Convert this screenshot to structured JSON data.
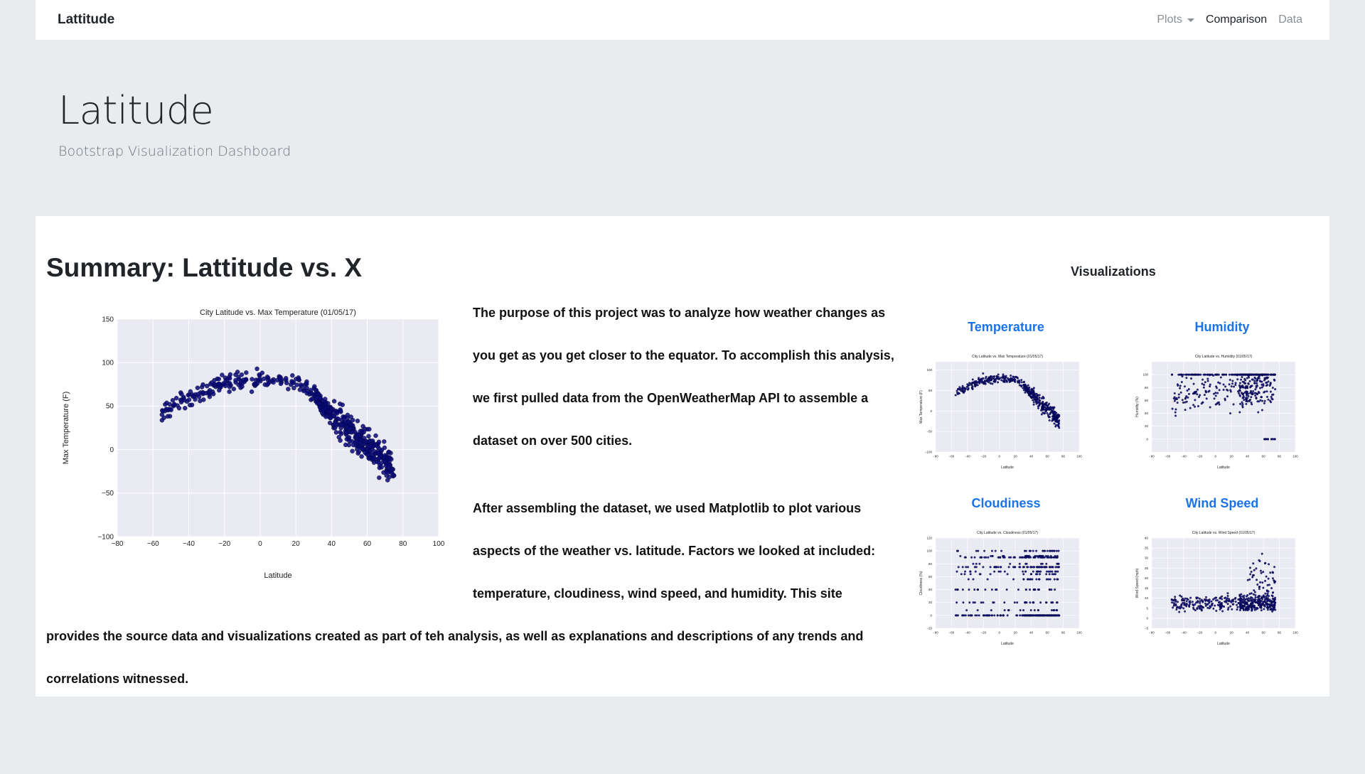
{
  "navbar": {
    "brand": "Lattitude",
    "items": [
      {
        "label": "Plots",
        "dropdown": true
      },
      {
        "label": "Comparison",
        "active": true
      },
      {
        "label": "Data"
      }
    ]
  },
  "hero": {
    "title": "Latitude",
    "subtitle": "Bootstrap Visualization Dashboard"
  },
  "summary": {
    "title": "Summary: Lattitude vs. X",
    "paragraph1": "The purpose of this project was to analyze how weather changes as you get as you get closer to the equator. To accomplish this analysis, we first pulled data from the OpenWeatherMap API to assemble a dataset on over 500 cities.",
    "paragraph2_part1": "After assembling the dataset, we used Matplotlib to plot various aspects of the weather vs. latitude. Factors we looked at included: temperature, cloudiness, wind speed, and humidity. This site",
    "paragraph2_part2": "provides the source data and visualizations created as part of teh analysis, as well as explanations and descriptions of any trends and correlations witnessed."
  },
  "visualizations": {
    "title": "Visualizations",
    "items": [
      {
        "label": "Temperature"
      },
      {
        "label": "Humidity"
      },
      {
        "label": "Cloudiness"
      },
      {
        "label": "Wind Speed"
      }
    ]
  },
  "colors": {
    "link": "#1a73e8",
    "point": "#0a0a7a",
    "plot_bg": "#eaeaf2"
  },
  "chart_data": [
    {
      "type": "scatter",
      "title": "City Latitude vs. Max Temperature (01/05/17)",
      "xlabel": "Latitude",
      "ylabel": "Max Temperature (F)",
      "xlim": [
        -80,
        100
      ],
      "ylim": [
        -100,
        150
      ],
      "xticks": [
        -80,
        -60,
        -40,
        -20,
        0,
        20,
        40,
        60,
        80,
        100
      ],
      "yticks": [
        -100,
        -50,
        0,
        50,
        100,
        150
      ],
      "grid": true
    },
    {
      "type": "scatter",
      "title": "City Latitude vs. Max Temperature (01/05/17)",
      "xlabel": "Latitude",
      "ylabel": "Max Temperature (F)",
      "xlim": [
        -80,
        100
      ],
      "ylim": [
        -100,
        120
      ],
      "xticks": [
        -80,
        -60,
        -40,
        -20,
        0,
        20,
        40,
        60,
        80,
        100
      ],
      "yticks": [
        -100,
        -50,
        0,
        50,
        100
      ],
      "grid": true
    },
    {
      "type": "scatter",
      "title": "City Latitude vs. Humidity (01/05/17)",
      "xlabel": "Latitude",
      "ylabel": "Humidity (%)",
      "xlim": [
        -80,
        100
      ],
      "ylim": [
        -20,
        120
      ],
      "xticks": [
        -80,
        -60,
        -40,
        -20,
        0,
        20,
        40,
        60,
        80,
        100
      ],
      "yticks": [
        0,
        20,
        40,
        60,
        80,
        100
      ],
      "grid": true
    },
    {
      "type": "scatter",
      "title": "City Latitude vs. Cloudiness (01/05/17)",
      "xlabel": "Latitude",
      "ylabel": "Cloudiness (%)",
      "xlim": [
        -80,
        100
      ],
      "ylim": [
        -20,
        120
      ],
      "xticks": [
        -80,
        -60,
        -40,
        -20,
        0,
        20,
        40,
        60,
        80,
        100
      ],
      "yticks": [
        -20,
        0,
        20,
        40,
        60,
        80,
        100,
        120
      ],
      "grid": true
    },
    {
      "type": "scatter",
      "title": "City Latitude vs. Wind Speed (01/05/17)",
      "xlabel": "Latitude",
      "ylabel": "Wind Speed (mph)",
      "xlim": [
        -80,
        100
      ],
      "ylim": [
        -5,
        40
      ],
      "xticks": [
        -80,
        -60,
        -40,
        -20,
        0,
        20,
        40,
        60,
        80,
        100
      ],
      "yticks": [
        -5,
        0,
        5,
        10,
        15,
        20,
        25,
        30,
        35,
        40
      ],
      "grid": true
    }
  ]
}
